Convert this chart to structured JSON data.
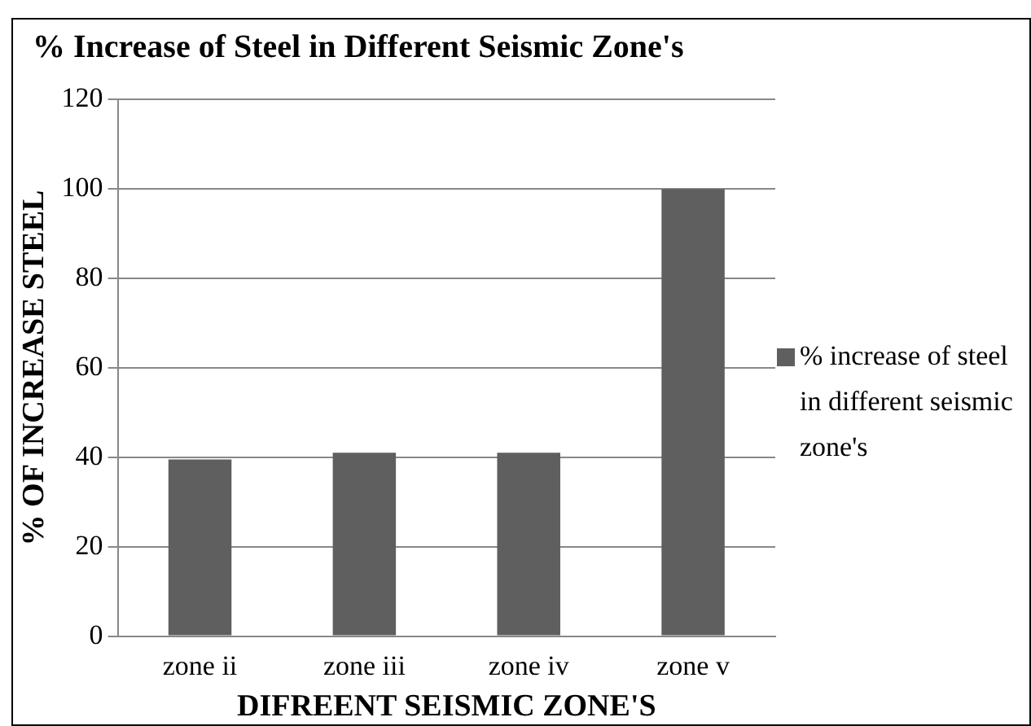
{
  "chart_data": {
    "type": "bar",
    "title": "% Increase of Steel in Different Seismic Zone's",
    "xlabel": "DIFREENT SEISMIC ZONE'S",
    "ylabel": "% OF INCREASE STEEL",
    "categories": [
      "zone ii",
      "zone iii",
      "zone iv",
      "zone v"
    ],
    "series": [
      {
        "name": "% increase of steel in different seismic zone's",
        "color": "#5f5f5f",
        "values": [
          39.5,
          41,
          41,
          100
        ]
      }
    ],
    "ylim": [
      0,
      120
    ],
    "yticks": [
      0,
      20,
      40,
      60,
      80,
      100,
      120
    ],
    "grid": "y",
    "legend": "right"
  }
}
